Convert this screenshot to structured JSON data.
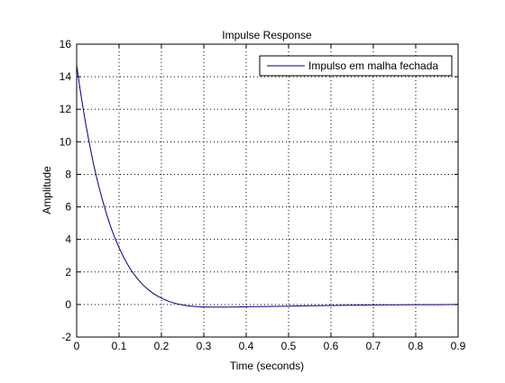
{
  "chart_data": {
    "type": "line",
    "title": "Impulse Response",
    "xlabel": "Time (seconds)",
    "ylabel": "Amplitude",
    "xlim": [
      0,
      0.9
    ],
    "ylim": [
      -2,
      16
    ],
    "xticks": [
      0,
      0.1,
      0.2,
      0.3,
      0.4,
      0.5,
      0.6,
      0.7,
      0.8,
      0.9
    ],
    "yticks": [
      -2,
      0,
      2,
      4,
      6,
      8,
      10,
      12,
      14,
      16
    ],
    "xtick_labels": [
      "0",
      "0.1",
      "0.2",
      "0.3",
      "0.4",
      "0.5",
      "0.6",
      "0.7",
      "0.8",
      "0.9"
    ],
    "ytick_labels": [
      "-2",
      "0",
      "2",
      "4",
      "6",
      "8",
      "10",
      "12",
      "14",
      "16"
    ],
    "grid": true,
    "legend_position": "top-right",
    "series": [
      {
        "name": "Impulso em malha fechada",
        "color": "#00007f",
        "x": [
          0,
          0.01,
          0.02,
          0.03,
          0.04,
          0.05,
          0.06,
          0.07,
          0.08,
          0.09,
          0.1,
          0.11,
          0.12,
          0.13,
          0.14,
          0.15,
          0.16,
          0.17,
          0.18,
          0.19,
          0.2,
          0.21,
          0.22,
          0.23,
          0.24,
          0.25,
          0.26,
          0.27,
          0.28,
          0.29,
          0.3,
          0.32,
          0.34,
          0.36,
          0.38,
          0.4,
          0.45,
          0.5,
          0.55,
          0.6,
          0.65,
          0.7,
          0.75,
          0.8,
          0.85,
          0.9
        ],
        "values": [
          14.7,
          12.9,
          11.3,
          9.9,
          8.6,
          7.5,
          6.5,
          5.6,
          4.8,
          4.1,
          3.5,
          2.95,
          2.47,
          2.05,
          1.7,
          1.39,
          1.12,
          0.89,
          0.7,
          0.53,
          0.39,
          0.27,
          0.17,
          0.09,
          0.02,
          -0.03,
          -0.07,
          -0.1,
          -0.12,
          -0.14,
          -0.15,
          -0.16,
          -0.16,
          -0.16,
          -0.15,
          -0.14,
          -0.12,
          -0.1,
          -0.08,
          -0.06,
          -0.04,
          -0.03,
          -0.02,
          -0.01,
          -0.01,
          0
        ]
      }
    ]
  }
}
